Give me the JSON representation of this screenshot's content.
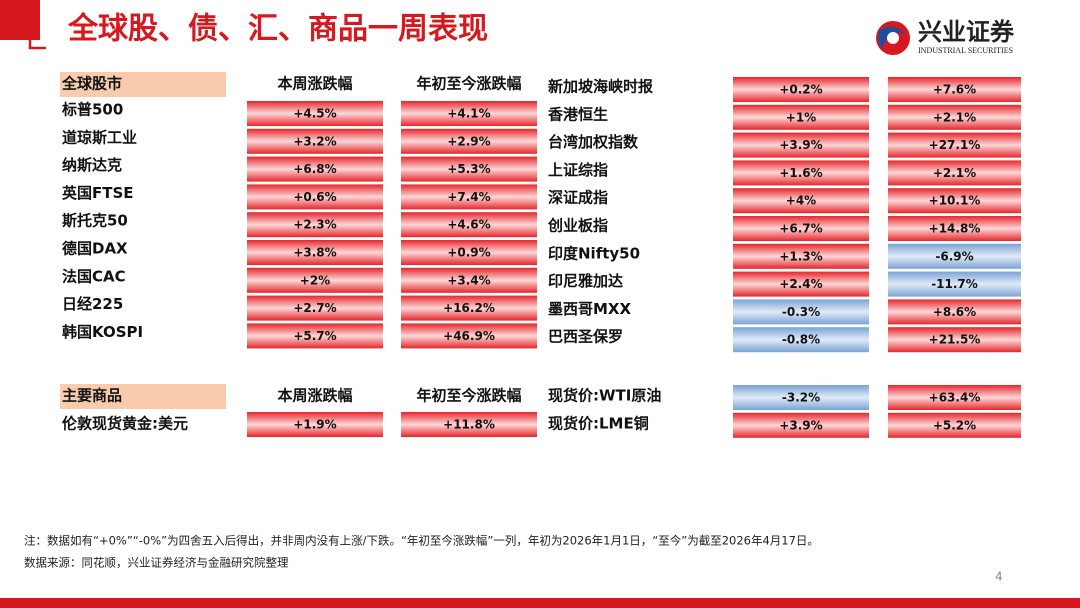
{
  "header": {
    "title": "全球股、债、汇、商品一周表现",
    "logo": "兴业证券",
    "logo_en": "INDUSTRIAL SECURITIES"
  },
  "stocks": {
    "headers": [
      "全球股市",
      "本周涨跌幅",
      "年初至今涨跌幅"
    ],
    "rows": [
      [
        "标普500",
        "+4.5%",
        "+4.1%"
      ],
      [
        "道琼斯工业",
        "+3.2%",
        "+2.9%"
      ],
      [
        "纳斯达克",
        "+6.8%",
        "+5.3%"
      ],
      [
        "英国FTSE",
        "+0.6%",
        "+7.4%"
      ],
      [
        "斯托克50",
        "+2.3%",
        "+4.6%"
      ],
      [
        "德国DAX",
        "+3.8%",
        "+0.9%"
      ],
      [
        "法国CAC",
        "+2%",
        "+3.4%"
      ],
      [
        "日经225",
        "+2.7%",
        "+16.2%"
      ],
      [
        "韩国KOSPI",
        "+5.7%",
        "+46.9%"
      ]
    ]
  },
  "stocks_right": {
    "rows": [
      [
        "新加坡海峡时报",
        "+0.2%",
        "+7.6%"
      ],
      [
        "香港恒生",
        "+1%",
        "+2.1%"
      ],
      [
        "台湾加权指数",
        "+3.9%",
        "+27.1%"
      ],
      [
        "上证综指",
        "+1.6%",
        "+2.1%"
      ],
      [
        "深证成指",
        "+4%",
        "+10.1%"
      ],
      [
        "创业板指",
        "+6.7%",
        "+14.8%"
      ],
      [
        "印度Nifty50",
        "+1.3%",
        "-6.9%"
      ],
      [
        "印尼雅加达",
        "+2.4%",
        "-11.7%"
      ],
      [
        "墨西哥MXX",
        "-0.3%",
        "+8.6%"
      ],
      [
        "巴西圣保罗",
        "-0.8%",
        "+21.5%"
      ]
    ]
  },
  "commodities": {
    "headers": [
      "主要商品",
      "本周涨跌幅",
      "年初至今涨跌幅"
    ],
    "rows": [
      [
        "伦敦现货黄金:美元",
        "+1.9%",
        "+11.8%"
      ]
    ]
  },
  "commodities_right": {
    "rows": [
      [
        "现货价:WTI原油",
        "-3.2%",
        "+63.4%"
      ],
      [
        "现货价:LME铜",
        "+3.9%",
        "+5.2%"
      ]
    ]
  },
  "notes": [
    "注：数据如有“+0%”“-0%”为四舍五入后得出，并非周内没有上涨/下跌。“年初至今涨跌幅”一列，年初为2026年1月1日，“至今”为截至2026年4月17日。",
    "数据来源：同花顺，兴业证券经济与金融研究院整理"
  ],
  "page_number": "4"
}
